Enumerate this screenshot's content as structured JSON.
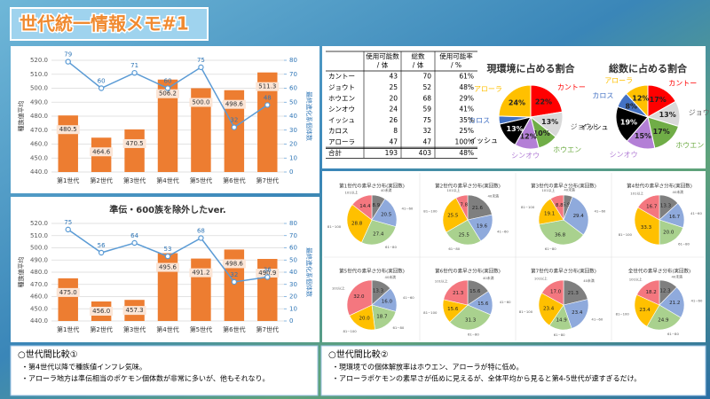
{
  "title": "世代統一情報メモ#1",
  "chart_data": [
    {
      "type": "combo",
      "ylabel": "種族値平均",
      "y2label": "最終進化系個体数",
      "categories": [
        "第1世代",
        "第2世代",
        "第3世代",
        "第4世代",
        "第5世代",
        "第6世代",
        "第7世代"
      ],
      "ylim": [
        440,
        520
      ],
      "yticks": [
        {
          "value": 440,
          "label": "440.0"
        },
        {
          "value": 450,
          "label": "450.0"
        },
        {
          "value": 460,
          "label": "460.0"
        },
        {
          "value": 470,
          "label": "470.0"
        },
        {
          "value": 480,
          "label": "480.0"
        },
        {
          "value": 490,
          "label": "490.0"
        },
        {
          "value": 500,
          "label": "500.0"
        },
        {
          "value": 510,
          "label": "510.0"
        },
        {
          "value": 520,
          "label": "520.0"
        }
      ],
      "y2lim": [
        0,
        80
      ],
      "y2ticks": [
        0,
        10,
        20,
        30,
        40,
        50,
        60,
        70,
        80
      ],
      "grid": true,
      "series": [
        {
          "type": "bar",
          "color": "#ed7d31",
          "values": [
            480.5,
            464.6,
            470.5,
            506.2,
            500.0,
            498.6,
            511.3
          ],
          "value_labels": [
            "480.5",
            "464.6",
            "470.5",
            "506.2",
            "500.0",
            "498.6",
            "511.3"
          ]
        },
        {
          "type": "line",
          "axis": "y2",
          "color": "#5b9bd5",
          "values": [
            79,
            60,
            71,
            60,
            75,
            32,
            48
          ]
        }
      ]
    },
    {
      "type": "combo",
      "title": "準伝・600族を除外したver.",
      "ylabel": "種族値平均",
      "y2label": "最終進化系個体数",
      "categories": [
        "第1世代",
        "第2世代",
        "第3世代",
        "第4世代",
        "第5世代",
        "第6世代",
        "第7世代"
      ],
      "ylim": [
        440,
        520
      ],
      "yticks": [
        {
          "value": 440,
          "label": "440.0"
        },
        {
          "value": 450,
          "label": "450.0"
        },
        {
          "value": 460,
          "label": "460.0"
        },
        {
          "value": 470,
          "label": "470.0"
        },
        {
          "value": 480,
          "label": "480.0"
        },
        {
          "value": 490,
          "label": "490.0"
        },
        {
          "value": 500,
          "label": "500.0"
        },
        {
          "value": 510,
          "label": "510.0"
        },
        {
          "value": 520,
          "label": "520.0"
        }
      ],
      "y2lim": [
        0,
        80
      ],
      "y2ticks": [
        0,
        10,
        20,
        30,
        40,
        50,
        60,
        70,
        80
      ],
      "grid": true,
      "series": [
        {
          "type": "bar",
          "color": "#ed7d31",
          "values": [
            475.0,
            456.0,
            457.3,
            495.6,
            491.2,
            498.6,
            490.9
          ],
          "value_labels": [
            "475.0",
            "456.0",
            "457.3",
            "495.6",
            "491.2",
            "498.6",
            "490.9"
          ]
        },
        {
          "type": "line",
          "axis": "y2",
          "color": "#5b9bd5",
          "values": [
            75,
            56,
            64,
            53,
            68,
            32,
            36
          ]
        }
      ]
    },
    {
      "type": "pie",
      "title": "現環境に占める割合",
      "categories": [
        "カントー",
        "ジョウト",
        "ホウエン",
        "シンオウ",
        "イッシュ",
        "カロス",
        "アローラ"
      ],
      "colors": [
        "#ff0000",
        "#d9d9d9",
        "#70ad47",
        "#b37fd6",
        "#000000",
        "#4472c4",
        "#ffc000"
      ],
      "values": [
        22,
        13,
        10,
        12,
        13,
        4,
        24
      ],
      "value_labels": [
        "22%",
        "13%",
        "10%",
        "12%",
        "13%",
        null,
        "24%"
      ]
    },
    {
      "type": "pie",
      "title": "総数に占める割合",
      "categories": [
        "カントー",
        "ジョウト",
        "ホウエン",
        "シンオウ",
        "イッシュ",
        "カロス",
        "アローラ"
      ],
      "colors": [
        "#ff0000",
        "#d9d9d9",
        "#70ad47",
        "#b37fd6",
        "#000000",
        "#4472c4",
        "#ffc000"
      ],
      "values": [
        17,
        13,
        17,
        15,
        19,
        8,
        12
      ],
      "value_labels": [
        "17%",
        "13%",
        "17%",
        "15%",
        "19%",
        "8%",
        "12%"
      ]
    },
    {
      "type": "pie",
      "title": "第1世代の素早さ分布(実回数)",
      "categories": [
        "40未満",
        "41~60",
        "61~80",
        "81~100",
        "101以上"
      ],
      "colors": [
        "#7f7f7f",
        "#8faadc",
        "#a9d18e",
        "#ffc000",
        "#f4777f"
      ],
      "values": [
        8.9,
        20.5,
        27.4,
        28.8,
        14.4
      ],
      "value_labels": [
        "8.9",
        "20.5",
        "27.4",
        "28.8",
        "14.4"
      ]
    },
    {
      "type": "pie",
      "title": "第2世代の素早さ分布(実回数)",
      "categories": [
        "40未満",
        "41~60",
        "61~80",
        "81~100",
        "101以上"
      ],
      "colors": [
        "#7f7f7f",
        "#8faadc",
        "#a9d18e",
        "#ffc000",
        "#f4777f"
      ],
      "values": [
        21.6,
        19.6,
        25.5,
        25.5,
        7.8
      ],
      "value_labels": [
        "21.6",
        "19.6",
        "25.5",
        "25.5",
        "7.8"
      ]
    },
    {
      "type": "pie",
      "title": "第3世代の素早さ分布(実回数)",
      "categories": [
        "40未満",
        "41~60",
        "61~80",
        "81~100",
        "101以上"
      ],
      "colors": [
        "#7f7f7f",
        "#8faadc",
        "#a9d18e",
        "#ffc000",
        "#f4777f"
      ],
      "values": [
        5.9,
        29.4,
        36.8,
        19.1,
        8.8
      ],
      "value_labels": [
        "5.9",
        "29.4",
        "36.8",
        "19.1",
        "8.8"
      ]
    },
    {
      "type": "pie",
      "title": "第4世代の素早さ分布(実回数)",
      "categories": [
        "40未満",
        "41~60",
        "61~80",
        "81~100",
        "101以上"
      ],
      "colors": [
        "#7f7f7f",
        "#8faadc",
        "#a9d18e",
        "#ffc000",
        "#f4777f"
      ],
      "values": [
        13.3,
        16.7,
        20.0,
        33.3,
        16.7
      ],
      "value_labels": [
        "13.3",
        "16.7",
        "20.0",
        "33.3",
        "16.7"
      ]
    },
    {
      "type": "pie",
      "title": "第5世代の素早さ分布(実回数)",
      "categories": [
        "40未満",
        "41~60",
        "61~80",
        "81~100",
        "101以上"
      ],
      "colors": [
        "#7f7f7f",
        "#8faadc",
        "#a9d18e",
        "#ffc000",
        "#f4777f"
      ],
      "values": [
        13.3,
        16.0,
        18.7,
        20.0,
        32.0
      ],
      "value_labels": [
        "13.3",
        "16.0",
        "18.7",
        "20.0",
        "32.0"
      ]
    },
    {
      "type": "pie",
      "title": "第6世代の素早さ分布(実回数)",
      "categories": [
        "40未満",
        "41~60",
        "61~80",
        "81~100",
        "101以上"
      ],
      "colors": [
        "#7f7f7f",
        "#8faadc",
        "#a9d18e",
        "#ffc000",
        "#f4777f"
      ],
      "values": [
        15.6,
        15.6,
        31.3,
        15.6,
        21.3
      ],
      "value_labels": [
        "15.6",
        "15.6",
        "31.3",
        "15.6",
        "21.3"
      ]
    },
    {
      "type": "pie",
      "title": "第7世代の素早さ分布(実回数)",
      "categories": [
        "40未満",
        "41~60",
        "61~80",
        "81~100",
        "101以上"
      ],
      "colors": [
        "#7f7f7f",
        "#8faadc",
        "#a9d18e",
        "#ffc000",
        "#f4777f"
      ],
      "values": [
        21.3,
        23.4,
        14.9,
        23.4,
        17.0
      ],
      "value_labels": [
        "21.3",
        "23.4",
        "14.9",
        "23.4",
        "17.0"
      ]
    },
    {
      "type": "pie",
      "title": "全世代の素早さ分布(実回数)",
      "categories": [
        "40未満",
        "41~60",
        "61~80",
        "81~100",
        "101以上"
      ],
      "colors": [
        "#7f7f7f",
        "#8faadc",
        "#a9d18e",
        "#ffc000",
        "#f4777f"
      ],
      "values": [
        12.3,
        21.2,
        24.9,
        23.4,
        18.2
      ],
      "value_labels": [
        "12.3",
        "21.2",
        "24.9",
        "23.4",
        "18.2"
      ]
    }
  ],
  "table": {
    "columns": [
      {
        "top": "使用可能数",
        "bottom": "/ 体"
      },
      {
        "top": "総数",
        "bottom": "/ 体"
      },
      {
        "top": "使用可能率",
        "bottom": "/ %"
      }
    ],
    "rows": [
      [
        "カントー",
        "43",
        "70",
        "61%"
      ],
      [
        "ジョウト",
        "25",
        "52",
        "48%"
      ],
      [
        "ホウエン",
        "20",
        "68",
        "29%"
      ],
      [
        "シンオウ",
        "24",
        "59",
        "41%"
      ],
      [
        "イッシュ",
        "26",
        "75",
        "35%"
      ],
      [
        "カロス",
        "8",
        "32",
        "25%"
      ],
      [
        "アローラ",
        "47",
        "47",
        "100%"
      ],
      [
        "合計",
        "193",
        "403",
        "48%"
      ]
    ]
  },
  "notes": [
    {
      "heading": "○世代間比較①",
      "items": [
        "・第4世代以降で種族値インフレ気味。",
        "・アローラ地方は準伝相当のポケモン個体数が非常に多いが、他もそれなり。"
      ]
    },
    {
      "heading": "○世代間比較②",
      "items": [
        "・現環境での個体解放率はホウエン、アローラが特に低め。",
        "・アローラポケモンの素早さが低めに見えるが、全体平均から見ると第4-5世代が速すぎるだけ。"
      ]
    }
  ]
}
